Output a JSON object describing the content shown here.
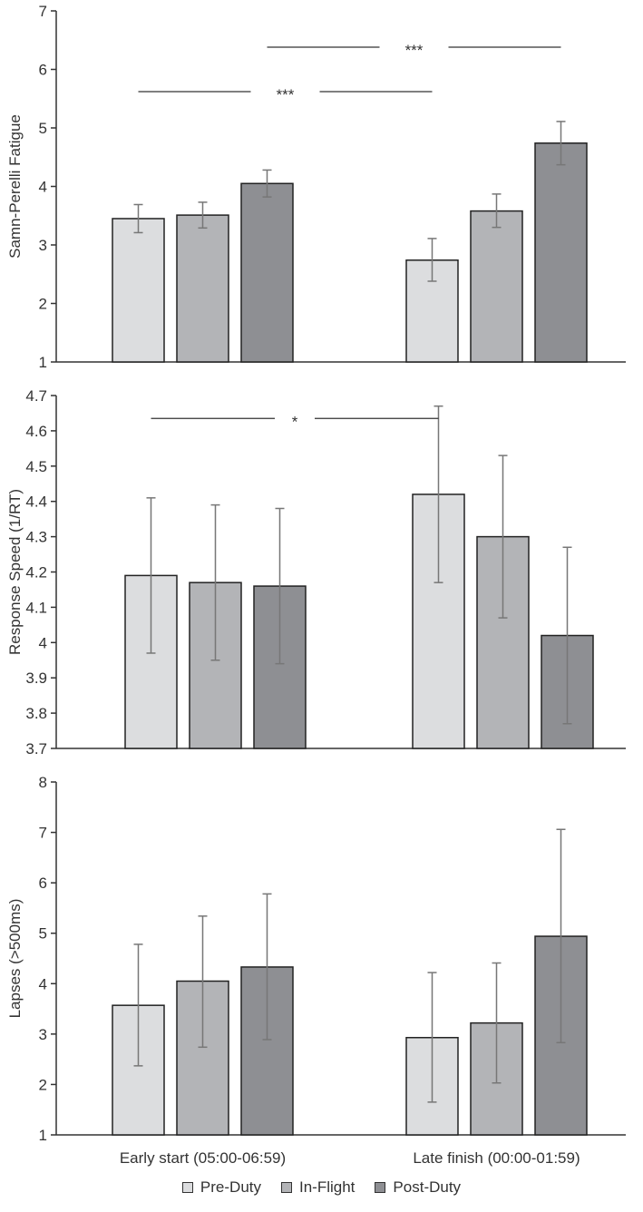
{
  "categories": [
    "Early start (05:00-06:59)",
    "Late finish (00:00-01:59)"
  ],
  "legend": [
    {
      "name": "Pre-Duty",
      "color": "#dcdddf"
    },
    {
      "name": "In-Flight",
      "color": "#b3b4b7"
    },
    {
      "name": "Post-Duty",
      "color": "#8e8f93"
    }
  ],
  "chart_data": [
    {
      "type": "bar",
      "ylabel": "Samn-Perelli Fatigue",
      "ylim": [
        1,
        7
      ],
      "yticks": [
        "1",
        "2",
        "3",
        "4",
        "5",
        "6",
        "7"
      ],
      "categories": [
        "Early start (05:00-06:59)",
        "Late finish (00:00-01:59)"
      ],
      "series": [
        {
          "name": "Pre-Duty",
          "values": [
            3.45,
            2.74
          ],
          "err_low": [
            3.21,
            2.38
          ],
          "err_high": [
            3.69,
            3.11
          ]
        },
        {
          "name": "In-Flight",
          "values": [
            3.51,
            3.58
          ],
          "err_low": [
            3.29,
            3.3
          ],
          "err_high": [
            3.73,
            3.87
          ]
        },
        {
          "name": "Post-Duty",
          "values": [
            4.05,
            4.74
          ],
          "err_low": [
            3.82,
            4.37
          ],
          "err_high": [
            4.28,
            5.11
          ]
        }
      ],
      "annotations": [
        {
          "label": "***",
          "from": [
            0,
            0
          ],
          "to": [
            1,
            0
          ],
          "y": 5.62
        },
        {
          "label": "***",
          "from": [
            0,
            2
          ],
          "to": [
            1,
            2
          ],
          "y": 6.38
        }
      ]
    },
    {
      "type": "bar",
      "ylabel": "Response Speed (1/RT)",
      "ylim": [
        3.7,
        4.7
      ],
      "yticks": [
        "3.7",
        "3.8",
        "3.9",
        "4",
        "4.1",
        "4.2",
        "4.3",
        "4.4",
        "4.5",
        "4.6",
        "4.7"
      ],
      "categories": [
        "Early start (05:00-06:59)",
        "Late finish (00:00-01:59)"
      ],
      "series": [
        {
          "name": "Pre-Duty",
          "values": [
            4.19,
            4.42
          ],
          "err_low": [
            3.97,
            4.17
          ],
          "err_high": [
            4.41,
            4.67
          ]
        },
        {
          "name": "In-Flight",
          "values": [
            4.17,
            4.3
          ],
          "err_low": [
            3.95,
            4.07
          ],
          "err_high": [
            4.39,
            4.53
          ]
        },
        {
          "name": "Post-Duty",
          "values": [
            4.16,
            4.02
          ],
          "err_low": [
            3.94,
            3.77
          ],
          "err_high": [
            4.38,
            4.27
          ]
        }
      ],
      "annotations": [
        {
          "label": "*",
          "from": [
            0,
            0
          ],
          "to": [
            1,
            0
          ],
          "y": 4.635
        }
      ]
    },
    {
      "type": "bar",
      "ylabel": "Lapses (>500ms)",
      "ylim": [
        1,
        8
      ],
      "yticks": [
        "1",
        "2",
        "3",
        "4",
        "5",
        "6",
        "7",
        "8"
      ],
      "categories": [
        "Early start (05:00-06:59)",
        "Late finish (00:00-01:59)"
      ],
      "series": [
        {
          "name": "Pre-Duty",
          "values": [
            3.57,
            2.93
          ],
          "err_low": [
            2.37,
            1.65
          ],
          "err_high": [
            4.78,
            4.22
          ]
        },
        {
          "name": "In-Flight",
          "values": [
            4.05,
            3.22
          ],
          "err_low": [
            2.74,
            2.03
          ],
          "err_high": [
            5.34,
            4.41
          ]
        },
        {
          "name": "Post-Duty",
          "values": [
            4.33,
            4.94
          ],
          "err_low": [
            2.89,
            2.83
          ],
          "err_high": [
            5.78,
            7.06
          ]
        }
      ],
      "annotations": []
    }
  ]
}
